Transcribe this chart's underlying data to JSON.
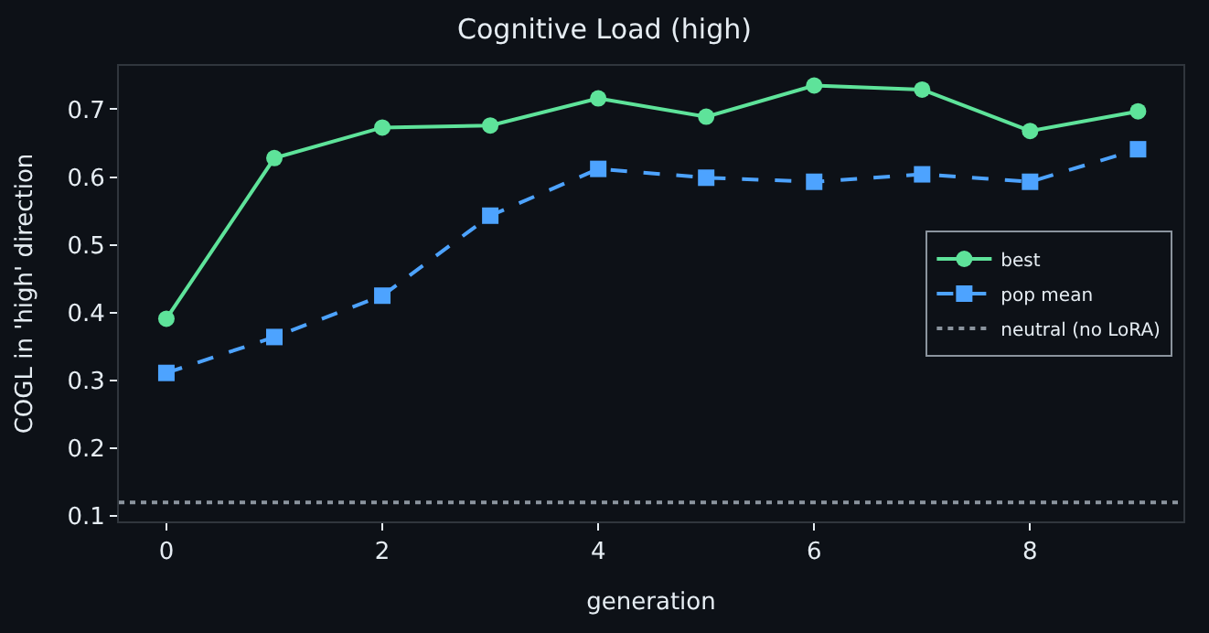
{
  "chart_data": {
    "type": "line",
    "title": "Cognitive Load (high)",
    "xlabel": "generation",
    "ylabel": "COGL in 'high' direction",
    "x": [
      0,
      1,
      2,
      3,
      4,
      5,
      6,
      7,
      8,
      9
    ],
    "series": [
      {
        "name": "best",
        "color": "#5ee39a",
        "marker": "circle",
        "line_style": "solid",
        "values": [
          0.391,
          0.628,
          0.673,
          0.676,
          0.716,
          0.689,
          0.735,
          0.729,
          0.668,
          0.697
        ]
      },
      {
        "name": "pop mean",
        "color": "#4da3ff",
        "marker": "square",
        "line_style": "dashed",
        "values": [
          0.311,
          0.364,
          0.425,
          0.543,
          0.612,
          0.599,
          0.593,
          0.604,
          0.593,
          0.641
        ]
      }
    ],
    "ref_lines": [
      {
        "axis": "y",
        "value": 0.12,
        "label": "neutral (no LoRA)",
        "color": "#8b949e",
        "line_style": "dotted"
      }
    ],
    "xlim": [
      -0.44,
      9.42
    ],
    "xticks": [
      0,
      2,
      4,
      6,
      8
    ],
    "ylim": [
      0.092,
      0.764
    ],
    "yticks": [
      0.1,
      0.2,
      0.3,
      0.4,
      0.5,
      0.6,
      0.7
    ],
    "grid": false,
    "legend": "right"
  }
}
